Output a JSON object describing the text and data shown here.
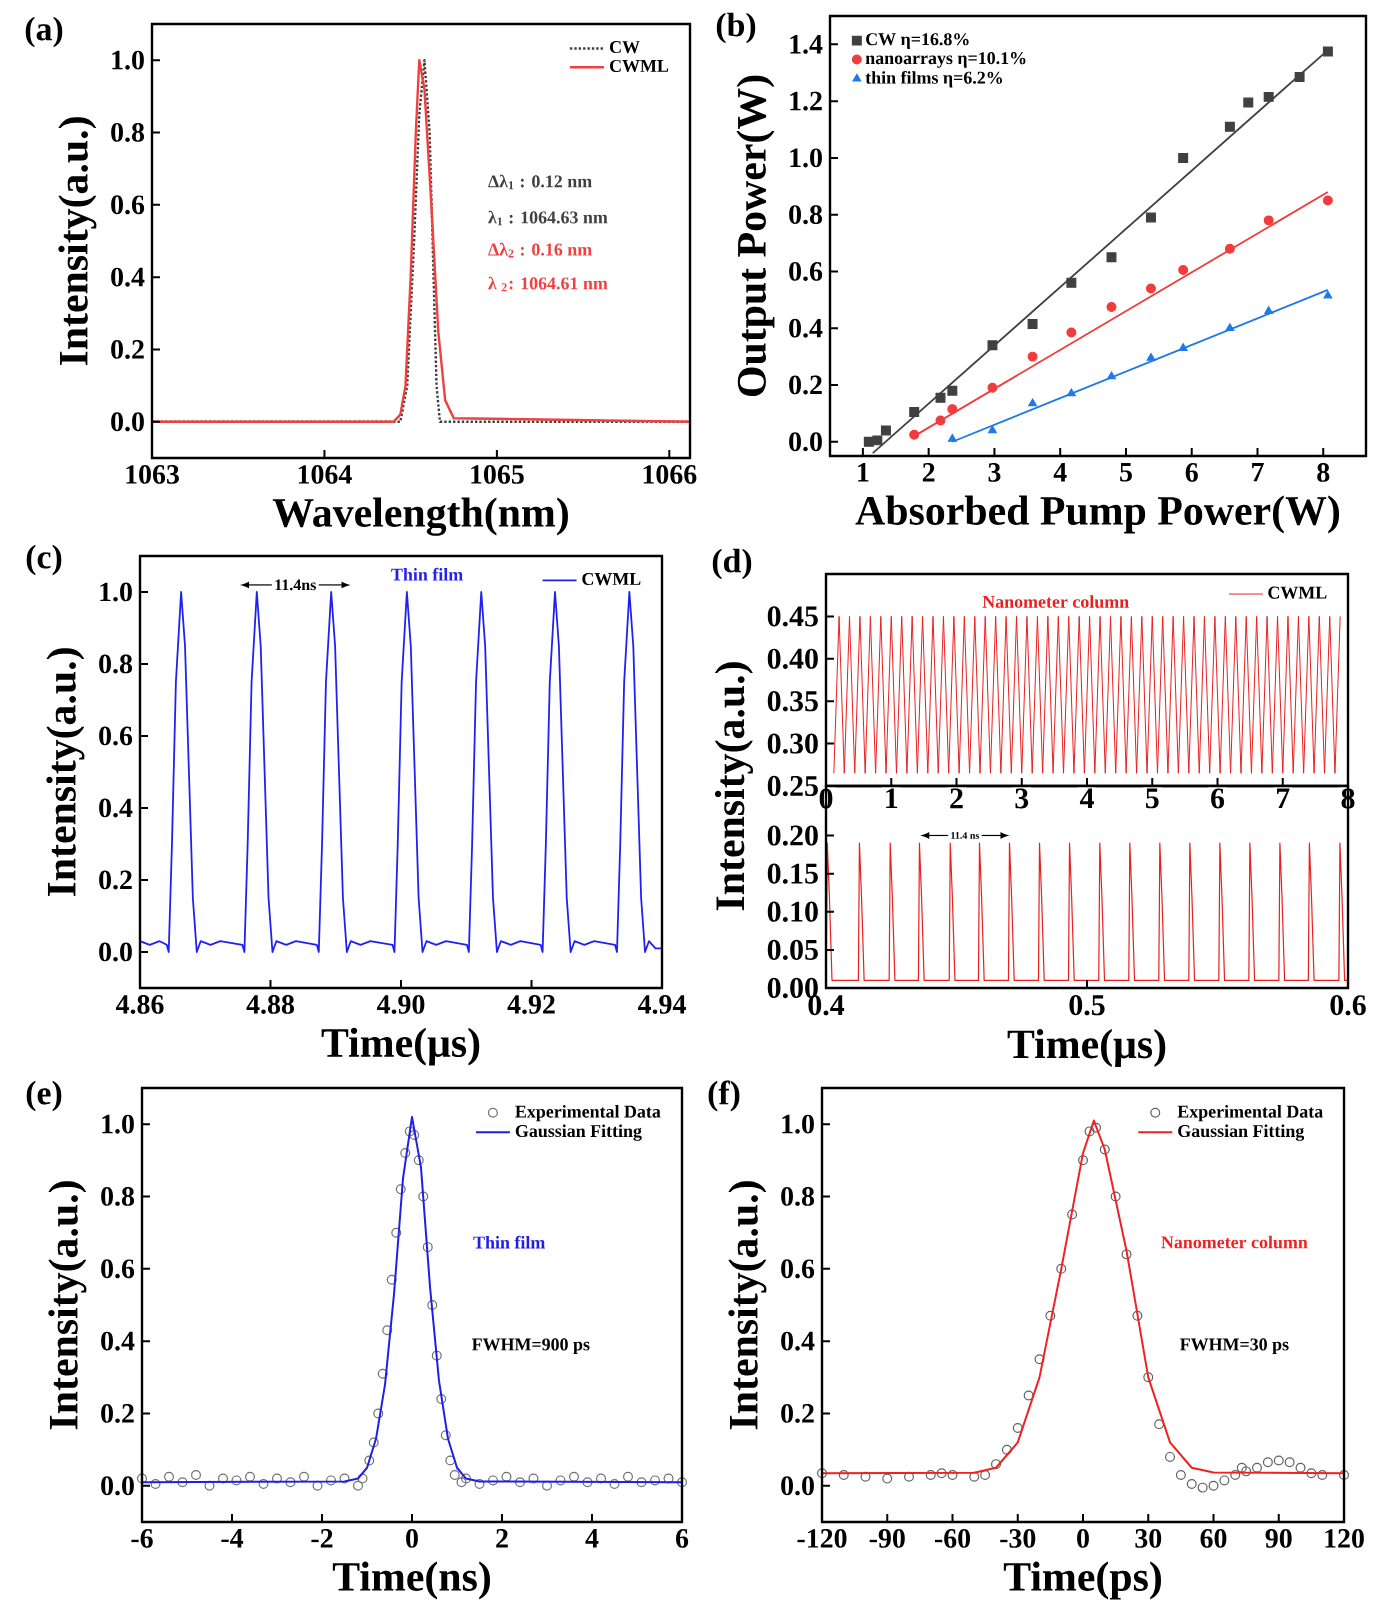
{
  "chart_data": [
    {
      "type": "line",
      "title": "(a)",
      "xlabel": "Wavelength(nm)",
      "ylabel": "Intensity(a.u.)",
      "xlim": [
        1063,
        1066.12
      ],
      "ylim": [
        -0.1,
        1.1
      ],
      "xticks": [
        1063,
        1064,
        1065,
        1066
      ],
      "yticks": [
        {
          "value": 0,
          "label": "0.0"
        },
        0.2,
        0.4,
        0.6,
        0.8,
        {
          "value": 1,
          "label": "1.0"
        }
      ],
      "legend": "top right",
      "series": [
        {
          "name": "CW",
          "color": "#404040",
          "line_style": "dotted",
          "x": [
            1063,
            1064.44,
            1064.48,
            1064.52,
            1064.55,
            1064.58,
            1064.61,
            1064.63,
            1064.65,
            1064.67,
            1066.12
          ],
          "values": [
            0,
            0,
            0.1,
            0.5,
            0.85,
            1.0,
            0.8,
            0.45,
            0.1,
            0,
            0
          ]
        },
        {
          "name": "CWML",
          "color": "#f04040",
          "line_style": "solid",
          "x": [
            1063,
            1064.4,
            1064.44,
            1064.47,
            1064.5,
            1064.53,
            1064.55,
            1064.58,
            1064.62,
            1064.66,
            1064.7,
            1064.75,
            1066.12
          ],
          "values": [
            0,
            0,
            0.02,
            0.1,
            0.4,
            0.8,
            1.0,
            0.92,
            0.6,
            0.25,
            0.06,
            0.01,
            0
          ]
        }
      ],
      "annotations": [
        "Δλ$_{1}$ : 0.12 nm",
        "λ$_{1}$ : 1064.63 nm",
        "Δλ$_{2}$ : 0.16 nm",
        "λ $_{2}$: 1064.61 nm"
      ]
    },
    {
      "type": "scatter",
      "title": "(b)",
      "xlabel": "Absorbed Pump Power(W)",
      "ylabel": "Output Power(W)",
      "xlim": [
        0.5,
        8.65
      ],
      "ylim": [
        -0.05,
        1.5
      ],
      "xticks": [
        1,
        2,
        3,
        4,
        5,
        6,
        7,
        8
      ],
      "yticks": [
        {
          "value": 0,
          "label": "0.0"
        },
        0.2,
        0.4,
        0.6,
        0.8,
        {
          "value": 1,
          "label": "1.0"
        },
        1.2,
        1.4
      ],
      "legend": "top left",
      "series": [
        {
          "type": "line",
          "color": "#404040",
          "x": [
            1.15,
            8.07
          ],
          "values": [
            -0.04,
            1.38
          ]
        },
        {
          "type": "line",
          "color": "#f03c3c",
          "x": [
            1.78,
            8.07
          ],
          "values": [
            0.02,
            0.88
          ]
        },
        {
          "type": "line",
          "color": "#1e7ae6",
          "x": [
            2.36,
            8.07
          ],
          "values": [
            0.0,
            0.535
          ]
        },
        {
          "name": "CW η=16.8%",
          "type": "scatter",
          "marker": "square",
          "color": "#404040",
          "x": [
            1.09,
            1.22,
            1.35,
            1.78,
            2.18,
            2.36,
            2.97,
            3.58,
            4.17,
            4.78,
            5.38,
            5.87,
            6.58,
            6.86,
            7.17,
            7.64,
            8.07
          ],
          "values": [
            0.0,
            0.005,
            0.04,
            0.105,
            0.155,
            0.18,
            0.34,
            0.415,
            0.56,
            0.65,
            0.79,
            1.0,
            1.11,
            1.195,
            1.215,
            1.285,
            1.375
          ]
        },
        {
          "name": "nanoarrays η=10.1%",
          "type": "scatter",
          "marker": "circle",
          "color": "#f03c3c",
          "x": [
            1.78,
            2.18,
            2.36,
            2.97,
            3.58,
            4.17,
            4.78,
            5.38,
            5.87,
            6.58,
            7.17,
            8.07
          ],
          "values": [
            0.025,
            0.075,
            0.115,
            0.19,
            0.3,
            0.385,
            0.475,
            0.54,
            0.605,
            0.68,
            0.78,
            0.85
          ]
        },
        {
          "name": "thin films η=6.2%",
          "type": "scatter",
          "marker": "triangle",
          "color": "#1e7ae6",
          "x": [
            2.36,
            2.97,
            3.58,
            4.17,
            4.78,
            5.38,
            5.87,
            6.58,
            7.17,
            8.07
          ],
          "values": [
            0.01,
            0.04,
            0.135,
            0.17,
            0.23,
            0.295,
            0.33,
            0.4,
            0.46,
            0.515
          ]
        }
      ]
    },
    {
      "type": "line",
      "title": "(c)",
      "xlabel": "Time(μs)",
      "ylabel": "Intensity(a.u.)",
      "xlim": [
        4.86,
        4.94
      ],
      "ylim": [
        -0.1,
        1.1
      ],
      "xticks": [
        4.86,
        4.88,
        {
          "value": 4.9,
          "label": "4.90"
        },
        4.92,
        4.94
      ],
      "yticks": [
        {
          "value": 0,
          "label": "0.0"
        },
        0.2,
        0.4,
        0.6,
        0.8,
        {
          "value": 1,
          "label": "1.0"
        }
      ],
      "legend": "top right",
      "series": [
        {
          "name": "CWML",
          "color": "#2020f0",
          "x": [
            4.86,
            4.8615,
            4.863,
            4.8641,
            4.8644,
            4.8649,
            4.8655,
            4.8663,
            4.8669,
            4.8675,
            4.8681,
            4.8687,
            4.8693,
            4.8708,
            4.8723,
            4.8757,
            4.876,
            4.8765,
            4.8771,
            4.8779,
            4.8785,
            4.8791,
            4.8797,
            4.8803,
            4.8809,
            4.8824,
            4.8839,
            4.8871,
            4.8874,
            4.8879,
            4.8885,
            4.8893,
            4.8899,
            4.8905,
            4.8911,
            4.8917,
            4.8923,
            4.8938,
            4.8953,
            4.8987,
            4.899,
            4.8995,
            4.9001,
            4.9009,
            4.9015,
            4.9021,
            4.9027,
            4.9033,
            4.9039,
            4.9054,
            4.9069,
            4.9101,
            4.9104,
            4.9109,
            4.9115,
            4.9123,
            4.9129,
            4.9135,
            4.9141,
            4.9147,
            4.9153,
            4.9168,
            4.9183,
            4.9214,
            4.9217,
            4.9222,
            4.9228,
            4.9236,
            4.9242,
            4.9248,
            4.9254,
            4.926,
            4.9266,
            4.9281,
            4.9296,
            4.9328,
            4.9331,
            4.9336,
            4.9342,
            4.935,
            4.9356,
            4.9362,
            4.9368,
            4.9374,
            4.938,
            4.939,
            4.94
          ],
          "values": [
            0.03,
            0.02,
            0.03,
            0.02,
            0,
            0.3,
            0.75,
            1,
            0.85,
            0.5,
            0.15,
            0,
            0.03,
            0.02,
            0.03,
            0.02,
            0,
            0.3,
            0.75,
            1,
            0.85,
            0.5,
            0.15,
            0,
            0.03,
            0.02,
            0.03,
            0.02,
            0,
            0.3,
            0.75,
            1,
            0.85,
            0.5,
            0.15,
            0,
            0.03,
            0.02,
            0.03,
            0.02,
            0,
            0.3,
            0.75,
            1,
            0.85,
            0.5,
            0.15,
            0,
            0.03,
            0.02,
            0.03,
            0.02,
            0,
            0.3,
            0.75,
            1,
            0.85,
            0.5,
            0.15,
            0,
            0.03,
            0.02,
            0.03,
            0.02,
            0,
            0.3,
            0.75,
            1,
            0.85,
            0.5,
            0.15,
            0,
            0.03,
            0.02,
            0.03,
            0.02,
            0,
            0.3,
            0.75,
            1,
            0.85,
            0.5,
            0.15,
            0,
            0.03,
            0.01,
            0.01
          ]
        }
      ],
      "annotations": [
        "11.4ns",
        "Thin film"
      ]
    },
    {
      "type": "line",
      "title": "(d)",
      "xlim": [
        0,
        8
      ],
      "ylim": [
        0.25,
        0.5
      ],
      "xticks": [
        0,
        1,
        2,
        3,
        4,
        5,
        6,
        7,
        8
      ],
      "yticks": [
        0.25,
        {
          "value": 0.3,
          "label": "0.30"
        },
        0.35,
        {
          "value": 0.4,
          "label": "0.40"
        },
        0.45
      ],
      "legend": "top right",
      "series": [
        {
          "name": "CWML",
          "color": "#e82020",
          "x": [
            0.12,
            0.2,
            0.28,
            0.36,
            0.44,
            0.52,
            0.6,
            0.68,
            0.76,
            0.84,
            0.92,
            1,
            1.08,
            1.16,
            1.24,
            1.32,
            1.4,
            1.48,
            1.56,
            1.64,
            1.72,
            1.8,
            1.88,
            1.96,
            2.04,
            2.12,
            2.2,
            2.28,
            2.36,
            2.44,
            2.52,
            2.6,
            2.68,
            2.76,
            2.84,
            2.92,
            3,
            3.08,
            3.16,
            3.24,
            3.32,
            3.4,
            3.48,
            3.56,
            3.64,
            3.72,
            3.8,
            3.88,
            3.96,
            4.04,
            4.12,
            4.2,
            4.28,
            4.36,
            4.44,
            4.52,
            4.6,
            4.68,
            4.76,
            4.84,
            4.92,
            5,
            5.08,
            5.16,
            5.24,
            5.32,
            5.4,
            5.48,
            5.56,
            5.64,
            5.72,
            5.8,
            5.88,
            5.96,
            6.04,
            6.12,
            6.2,
            6.28,
            6.36,
            6.44,
            6.52,
            6.6,
            6.68,
            6.76,
            6.84,
            6.92,
            7,
            7.08,
            7.16,
            7.24,
            7.32,
            7.4,
            7.48,
            7.56,
            7.64,
            7.72,
            7.8,
            7.88
          ],
          "values": [
            0.265,
            0.45,
            0.265,
            0.45,
            0.265,
            0.45,
            0.265,
            0.45,
            0.265,
            0.45,
            0.265,
            0.45,
            0.265,
            0.45,
            0.265,
            0.45,
            0.265,
            0.45,
            0.265,
            0.45,
            0.265,
            0.45,
            0.265,
            0.45,
            0.265,
            0.45,
            0.265,
            0.45,
            0.265,
            0.45,
            0.265,
            0.45,
            0.265,
            0.45,
            0.265,
            0.45,
            0.265,
            0.45,
            0.265,
            0.45,
            0.265,
            0.45,
            0.265,
            0.45,
            0.265,
            0.45,
            0.265,
            0.45,
            0.265,
            0.45,
            0.265,
            0.45,
            0.265,
            0.45,
            0.265,
            0.45,
            0.265,
            0.45,
            0.265,
            0.45,
            0.265,
            0.45,
            0.265,
            0.45,
            0.265,
            0.45,
            0.265,
            0.45,
            0.265,
            0.45,
            0.265,
            0.45,
            0.265,
            0.45,
            0.265,
            0.45,
            0.265,
            0.45,
            0.265,
            0.45,
            0.265,
            0.45,
            0.265,
            0.45,
            0.265,
            0.45,
            0.265,
            0.45,
            0.265,
            0.45,
            0.265,
            0.45,
            0.265,
            0.45,
            0.265,
            0.45,
            0.265,
            0.45
          ]
        }
      ],
      "annotations": [
        "Nanometer column"
      ]
    },
    {
      "type": "line",
      "xlabel": "Time(μs)",
      "ylabel": "Intensity(a.u.)",
      "xlim": [
        0.4,
        0.6
      ],
      "ylim": [
        0,
        0.265
      ],
      "xticks": [
        0.4,
        0.5,
        0.6
      ],
      "yticks": [
        {
          "value": 0,
          "label": "0.00"
        },
        0.05,
        {
          "value": 0.1,
          "label": "0.10"
        },
        0.15,
        {
          "value": 0.2,
          "label": "0.20"
        }
      ],
      "series": [
        {
          "color": "#e82020",
          "x": [
            0.4,
            0.4005,
            0.4013,
            0.4023,
            0.4124,
            0.4128,
            0.4136,
            0.4146,
            0.4242,
            0.4246,
            0.4254,
            0.4264,
            0.4354,
            0.4358,
            0.4366,
            0.4376,
            0.4472,
            0.4476,
            0.4484,
            0.4494,
            0.4584,
            0.4588,
            0.4596,
            0.4606,
            0.4699,
            0.4703,
            0.4711,
            0.4721,
            0.4814,
            0.4818,
            0.4826,
            0.4836,
            0.4929,
            0.4933,
            0.4941,
            0.4951,
            0.5045,
            0.5049,
            0.5057,
            0.5067,
            0.516,
            0.5164,
            0.5172,
            0.5182,
            0.5275,
            0.5279,
            0.5287,
            0.5297,
            0.539,
            0.5394,
            0.5402,
            0.5412,
            0.5505,
            0.5509,
            0.5517,
            0.5527,
            0.562,
            0.5624,
            0.5632,
            0.5642,
            0.5735,
            0.5739,
            0.5747,
            0.5757,
            0.5848,
            0.5852,
            0.586,
            0.587,
            0.5965,
            0.5969,
            0.5977,
            0.5987,
            0.6
          ],
          "values": [
            0.01,
            0.19,
            0.12,
            0.01,
            0.01,
            0.19,
            0.12,
            0.01,
            0.01,
            0.19,
            0.12,
            0.01,
            0.01,
            0.19,
            0.12,
            0.01,
            0.01,
            0.19,
            0.12,
            0.01,
            0.01,
            0.19,
            0.12,
            0.01,
            0.01,
            0.19,
            0.12,
            0.01,
            0.01,
            0.19,
            0.12,
            0.01,
            0.01,
            0.19,
            0.12,
            0.01,
            0.01,
            0.19,
            0.12,
            0.01,
            0.01,
            0.19,
            0.12,
            0.01,
            0.01,
            0.19,
            0.12,
            0.01,
            0.01,
            0.19,
            0.12,
            0.01,
            0.01,
            0.19,
            0.12,
            0.01,
            0.01,
            0.19,
            0.12,
            0.01,
            0.01,
            0.19,
            0.12,
            0.01,
            0.01,
            0.19,
            0.12,
            0.01,
            0.01,
            0.19,
            0.12,
            0.01,
            0.01
          ]
        }
      ],
      "annotations": [
        "11.4 ns"
      ]
    },
    {
      "type": "scatter",
      "title": "(e)",
      "xlabel": "Time(ns)",
      "ylabel": "Intensity(a.u.)",
      "xlim": [
        -6,
        6
      ],
      "ylim": [
        -0.1,
        1.1
      ],
      "xticks": [
        -6,
        -4,
        -2,
        0,
        2,
        4,
        6
      ],
      "yticks": [
        {
          "value": 0,
          "label": "0.0"
        },
        0.2,
        0.4,
        0.6,
        0.8,
        {
          "value": 1,
          "label": "1.0"
        }
      ],
      "legend": "top right",
      "series": [
        {
          "name": "Experimental Data",
          "type": "scatter",
          "marker": "circle",
          "color": "#707070",
          "x": [
            -6,
            -5.7,
            -5.4,
            -5.1,
            -4.8,
            -4.5,
            -4.2,
            -3.9,
            -3.6,
            -3.3,
            -3,
            -2.7,
            -2.4,
            -2.1,
            -1.8,
            -1.5,
            -1.2,
            -1.1,
            -0.95,
            -0.85,
            -0.75,
            -0.65,
            -0.55,
            -0.45,
            -0.35,
            -0.25,
            -0.15,
            -0.05,
            0.05,
            0.15,
            0.25,
            0.35,
            0.45,
            0.55,
            0.65,
            0.75,
            0.85,
            0.95,
            1.1,
            1.2,
            1.5,
            1.8,
            2.1,
            2.4,
            2.7,
            3,
            3.3,
            3.6,
            3.9,
            4.2,
            4.5,
            4.8,
            5.1,
            5.4,
            5.7,
            6
          ],
          "values": [
            0.02,
            0.005,
            0.025,
            0.01,
            0.03,
            0.0,
            0.02,
            0.015,
            0.025,
            0.005,
            0.02,
            0.01,
            0.025,
            0.0,
            0.015,
            0.02,
            0.0,
            0.02,
            0.07,
            0.12,
            0.2,
            0.31,
            0.43,
            0.57,
            0.7,
            0.82,
            0.92,
            0.98,
            0.97,
            0.9,
            0.8,
            0.66,
            0.5,
            0.36,
            0.24,
            0.14,
            0.07,
            0.03,
            0.01,
            0.02,
            0.005,
            0.015,
            0.025,
            0.01,
            0.02,
            0.0,
            0.015,
            0.025,
            0.01,
            0.02,
            0.005,
            0.025,
            0.01,
            0.015,
            0.02,
            0.01
          ]
        },
        {
          "name": "Gaussian Fitting",
          "type": "line",
          "color": "#1f1fe6",
          "x": [
            -6,
            -1.5,
            -1.2,
            -1,
            -0.8,
            -0.6,
            -0.4,
            -0.2,
            0,
            0.2,
            0.4,
            0.6,
            0.8,
            1,
            1.2,
            1.5,
            6
          ],
          "values": [
            0.01,
            0.012,
            0.02,
            0.05,
            0.13,
            0.28,
            0.53,
            0.85,
            1.02,
            0.88,
            0.55,
            0.29,
            0.13,
            0.05,
            0.02,
            0.012,
            0.01
          ]
        }
      ],
      "annotations": [
        "Thin film",
        "FWHM=900 ps"
      ]
    },
    {
      "type": "scatter",
      "title": "(f)",
      "xlabel": "Time(ps)",
      "ylabel": "Intensity(a.u.)",
      "xlim": [
        -120,
        120
      ],
      "ylim": [
        -0.1,
        1.1
      ],
      "xticks": [
        -120,
        -90,
        -60,
        -30,
        0,
        30,
        60,
        90,
        120
      ],
      "yticks": [
        {
          "value": 0,
          "label": "0.0"
        },
        0.2,
        0.4,
        0.6,
        0.8,
        {
          "value": 1,
          "label": "1.0"
        }
      ],
      "legend": "top right",
      "series": [
        {
          "name": "Experimental Data",
          "type": "scatter",
          "marker": "circle",
          "color": "#606060",
          "x": [
            -120,
            -110,
            -100,
            -90,
            -80,
            -70,
            -65,
            -60,
            -50,
            -45,
            -40,
            -35,
            -30,
            -25,
            -20,
            -15,
            -10,
            -5,
            0,
            3,
            6,
            10,
            15,
            20,
            25,
            30,
            35,
            40,
            45,
            50,
            55,
            60,
            65,
            70,
            73,
            75,
            80,
            85,
            90,
            95,
            100,
            105,
            110,
            120
          ],
          "values": [
            0.035,
            0.03,
            0.025,
            0.02,
            0.025,
            0.03,
            0.035,
            0.03,
            0.025,
            0.03,
            0.06,
            0.1,
            0.16,
            0.25,
            0.35,
            0.47,
            0.6,
            0.75,
            0.9,
            0.98,
            0.99,
            0.93,
            0.8,
            0.64,
            0.47,
            0.3,
            0.17,
            0.08,
            0.03,
            0.005,
            -0.005,
            0.0,
            0.015,
            0.03,
            0.05,
            0.04,
            0.05,
            0.065,
            0.07,
            0.065,
            0.05,
            0.035,
            0.03,
            0.03
          ]
        },
        {
          "name": "Gaussian Fitting",
          "type": "line",
          "color": "#ee2222",
          "x": [
            -120,
            -50,
            -40,
            -30,
            -20,
            -10,
            0,
            5,
            10,
            20,
            30,
            40,
            50,
            60,
            120
          ],
          "values": [
            0.035,
            0.036,
            0.05,
            0.12,
            0.3,
            0.6,
            0.92,
            1.01,
            0.93,
            0.65,
            0.3,
            0.12,
            0.05,
            0.037,
            0.035
          ]
        }
      ],
      "annotations": [
        "Nanometer column",
        "FWHM=30 ps"
      ]
    }
  ]
}
